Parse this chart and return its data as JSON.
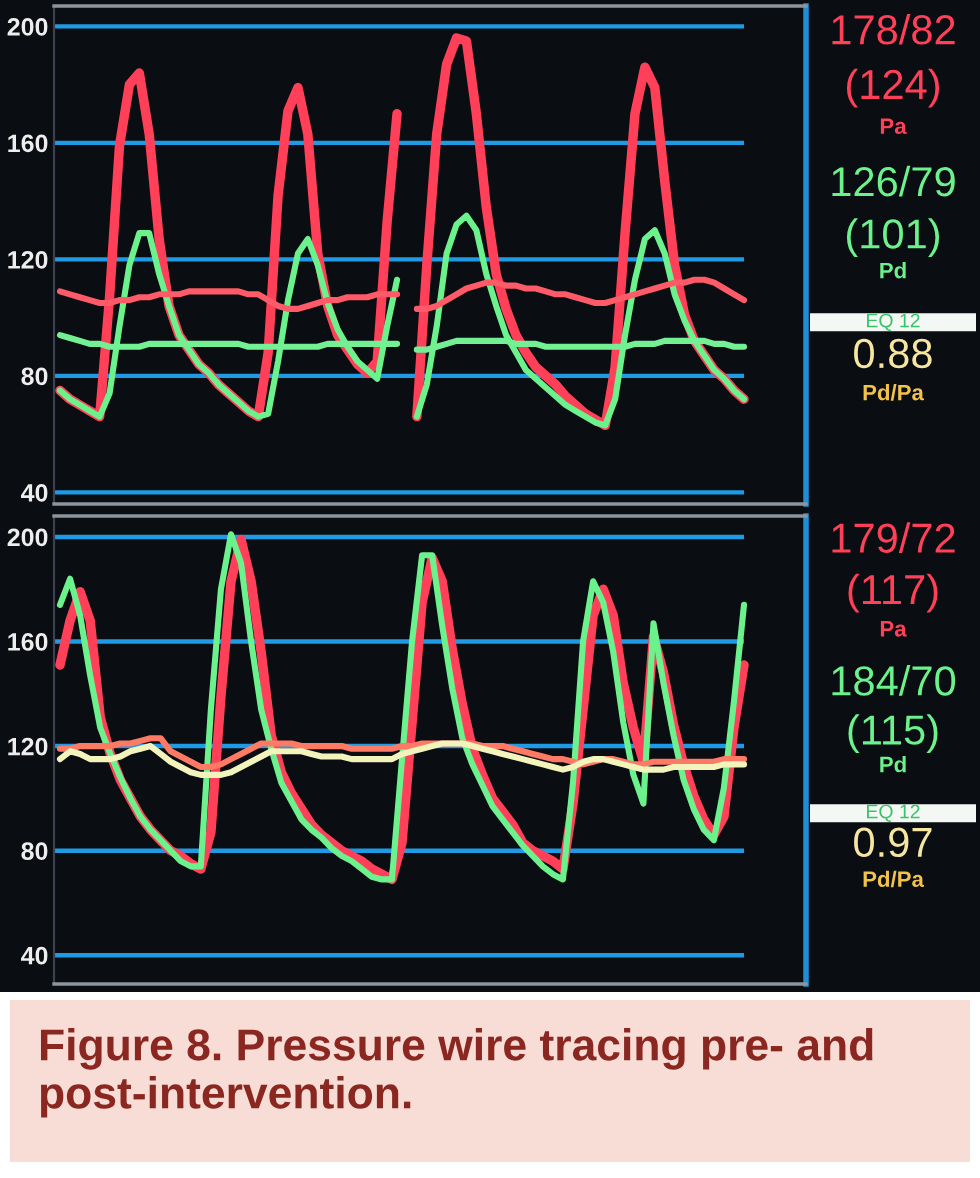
{
  "chart_data": [
    {
      "type": "line",
      "categories": [
        null,
        null,
        null,
        null,
        null,
        null,
        null,
        null,
        null,
        null,
        null,
        null,
        null,
        null,
        null,
        null,
        null,
        null,
        null,
        null,
        null,
        null,
        null,
        null,
        null,
        null,
        null,
        null,
        null,
        null,
        null,
        null,
        null,
        null,
        null,
        null,
        null,
        null,
        null,
        null,
        null,
        null,
        null,
        null,
        null,
        null,
        null,
        null,
        null,
        null,
        null,
        null,
        null,
        null,
        null,
        null,
        null,
        null,
        null,
        null,
        null,
        null,
        null,
        null,
        null,
        null,
        null,
        null,
        null,
        null
      ],
      "series": [
        {
          "name": "Pa",
          "color": "#ff4058",
          "values": [
            75,
            72,
            70,
            68,
            66,
            107,
            159,
            180,
            184,
            163,
            127,
            104,
            94,
            89,
            84,
            81,
            77,
            74,
            71,
            68,
            66,
            88,
            142,
            171,
            179,
            163,
            122,
            104,
            94,
            89,
            84,
            81,
            85,
            133,
            170,
            null,
            66,
            118,
            163,
            187,
            196,
            195,
            170,
            138,
            115,
            103,
            94,
            88,
            83,
            80,
            77,
            73,
            70,
            67,
            65,
            63,
            83,
            129,
            170,
            186,
            179,
            147,
            118,
            101,
            92,
            87,
            82,
            79,
            75,
            72
          ]
        },
        {
          "name": "Pd",
          "color": "#6cf28c",
          "values": [
            75,
            72,
            70,
            68,
            66,
            74,
            97,
            118,
            129,
            129,
            115,
            104,
            94,
            89,
            84,
            81,
            77,
            74,
            71,
            68,
            66,
            67,
            85,
            106,
            122,
            127,
            118,
            105,
            96,
            90,
            85,
            82,
            79,
            97,
            113,
            null,
            66,
            77,
            97,
            122,
            132,
            135,
            130,
            115,
            104,
            94,
            88,
            82,
            79,
            76,
            73,
            70,
            68,
            66,
            64,
            63,
            72,
            94,
            113,
            127,
            130,
            122,
            108,
            99,
            92,
            87,
            82,
            79,
            75,
            72
          ]
        },
        {
          "color": "#ff5a68",
          "values": [
            109,
            108,
            107,
            106,
            105,
            105,
            106,
            106,
            107,
            107,
            108,
            108,
            108,
            109,
            109,
            109,
            109,
            109,
            109,
            108,
            108,
            106,
            104,
            103,
            103,
            104,
            105,
            106,
            106,
            107,
            107,
            107,
            108,
            108,
            108,
            null,
            103,
            103,
            104,
            106,
            108,
            110,
            111,
            112,
            112,
            111,
            111,
            110,
            110,
            109,
            108,
            108,
            107,
            106,
            105,
            105,
            106,
            107,
            108,
            109,
            110,
            111,
            112,
            112,
            113,
            113,
            112,
            110,
            108,
            106
          ]
        },
        {
          "color": "#74f094",
          "values": [
            94,
            93,
            92,
            91,
            91,
            90,
            90,
            90,
            90,
            91,
            91,
            91,
            91,
            91,
            91,
            91,
            91,
            91,
            91,
            90,
            90,
            90,
            90,
            90,
            90,
            90,
            90,
            91,
            91,
            91,
            91,
            91,
            91,
            91,
            91,
            null,
            89,
            89,
            90,
            91,
            92,
            92,
            92,
            92,
            92,
            92,
            91,
            91,
            91,
            90,
            90,
            90,
            90,
            90,
            90,
            90,
            90,
            90,
            91,
            91,
            91,
            92,
            92,
            92,
            92,
            92,
            91,
            91,
            90,
            90
          ]
        }
      ],
      "ylim": [
        36,
        207
      ],
      "yticks": [
        40,
        80,
        120,
        160,
        200
      ],
      "grid": "y",
      "tick_labels": "y",
      "annotations": [
        "178/82",
        "(124)",
        "126/79",
        "(101)",
        "EQ 12",
        "0.88",
        "Pd/Pa"
      ]
    },
    {
      "type": "line",
      "categories": [
        null,
        null,
        null,
        null,
        null,
        null,
        null,
        null,
        null,
        null,
        null,
        null,
        null,
        null,
        null,
        null,
        null,
        null,
        null,
        null,
        null,
        null,
        null,
        null,
        null,
        null,
        null,
        null,
        null,
        null,
        null,
        null,
        null,
        null,
        null,
        null,
        null,
        null,
        null,
        null,
        null,
        null,
        null,
        null,
        null,
        null,
        null,
        null,
        null,
        null,
        null,
        null,
        null,
        null,
        null,
        null,
        null,
        null,
        null,
        null,
        null,
        null,
        null,
        null,
        null,
        null,
        null,
        null,
        null
      ],
      "series": [
        {
          "name": "Pa",
          "color": "#ff4058",
          "values": [
            151,
            168,
            179,
            168,
            131,
            117,
            107,
            100,
            93,
            88,
            84,
            80,
            78,
            75,
            73,
            87,
            139,
            183,
            199,
            183,
            156,
            124,
            110,
            102,
            96,
            90,
            86,
            83,
            80,
            78,
            76,
            73,
            71,
            69,
            83,
            129,
            175,
            192,
            183,
            157,
            136,
            119,
            109,
            100,
            95,
            90,
            83,
            80,
            78,
            76,
            73,
            98,
            134,
            170,
            180,
            170,
            144,
            127,
            114,
            162,
            148,
            128,
            113,
            101,
            92,
            86,
            93,
            127,
            151
          ]
        },
        {
          "name": "Pd",
          "color": "#6cf28c",
          "values": [
            174,
            184,
            170,
            147,
            127,
            117,
            108,
            100,
            93,
            88,
            84,
            80,
            76,
            74,
            74,
            134,
            180,
            201,
            190,
            160,
            134,
            119,
            106,
            99,
            92,
            88,
            85,
            81,
            78,
            76,
            73,
            70,
            69,
            69,
            115,
            160,
            193,
            193,
            166,
            142,
            123,
            113,
            105,
            97,
            92,
            87,
            82,
            78,
            74,
            71,
            69,
            106,
            160,
            183,
            175,
            156,
            129,
            109,
            98,
            167,
            144,
            124,
            107,
            96,
            88,
            84,
            104,
            137,
            174
          ]
        },
        {
          "color": "#ff7a64",
          "values": [
            119,
            119,
            120,
            120,
            120,
            120,
            121,
            121,
            122,
            123,
            123,
            118,
            116,
            114,
            112,
            112,
            113,
            115,
            117,
            119,
            121,
            121,
            121,
            121,
            120,
            120,
            120,
            120,
            120,
            119,
            119,
            119,
            119,
            119,
            120,
            120,
            121,
            121,
            121,
            121,
            121,
            121,
            120,
            120,
            120,
            119,
            118,
            117,
            116,
            115,
            115,
            114,
            113,
            114,
            115,
            115,
            114,
            113,
            113,
            114,
            114,
            114,
            114,
            114,
            114,
            114,
            115,
            115,
            115
          ]
        },
        {
          "color": "#f2f4bc",
          "values": [
            115,
            118,
            117,
            115,
            115,
            115,
            116,
            118,
            119,
            120,
            117,
            114,
            112,
            110,
            109,
            109,
            109,
            110,
            112,
            114,
            116,
            118,
            118,
            118,
            118,
            117,
            116,
            116,
            116,
            115,
            115,
            115,
            115,
            115,
            117,
            118,
            119,
            120,
            121,
            121,
            121,
            120,
            119,
            118,
            117,
            116,
            115,
            114,
            113,
            112,
            111,
            112,
            114,
            115,
            115,
            114,
            113,
            112,
            111,
            111,
            111,
            112,
            112,
            112,
            112,
            112,
            113,
            113,
            113
          ]
        }
      ],
      "ylim": [
        29,
        208
      ],
      "yticks": [
        40,
        80,
        120,
        160,
        200
      ],
      "grid": "y",
      "tick_labels": "y",
      "annotations": [
        "179/72",
        "(117)",
        "184/70",
        "(115)",
        "EQ 12",
        "0.97",
        "Pd/Pa",
        "Figure 8. Pressure wire tracing pre- and post-intervention."
      ]
    }
  ]
}
